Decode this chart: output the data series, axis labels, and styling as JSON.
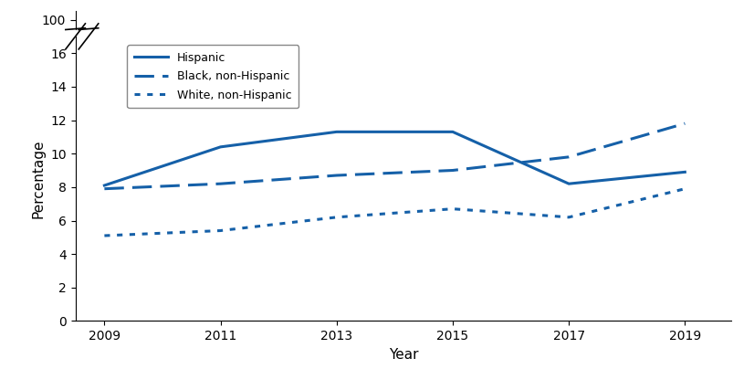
{
  "years": [
    2009,
    2011,
    2013,
    2015,
    2017,
    2019
  ],
  "hispanic": [
    8.1,
    10.4,
    11.3,
    11.3,
    8.2,
    8.9
  ],
  "black_non_hispanic": [
    7.9,
    8.2,
    8.7,
    9.0,
    9.8,
    11.8
  ],
  "white_non_hispanic": [
    5.1,
    5.4,
    6.2,
    6.7,
    6.2,
    7.9
  ],
  "line_color": "#1560a8",
  "legend_labels": [
    "Hispanic",
    "Black, non-Hispanic",
    "White, non-Hispanic"
  ],
  "xlabel": "Year",
  "ylabel": "Percentage",
  "xticks": [
    2009,
    2011,
    2013,
    2015,
    2017,
    2019
  ],
  "main_yticks": [
    0,
    2,
    4,
    6,
    8,
    10,
    12,
    14,
    16
  ],
  "linewidth": 2.2,
  "axis_fontsize": 10,
  "legend_fontsize": 9,
  "background_color": "#ffffff"
}
